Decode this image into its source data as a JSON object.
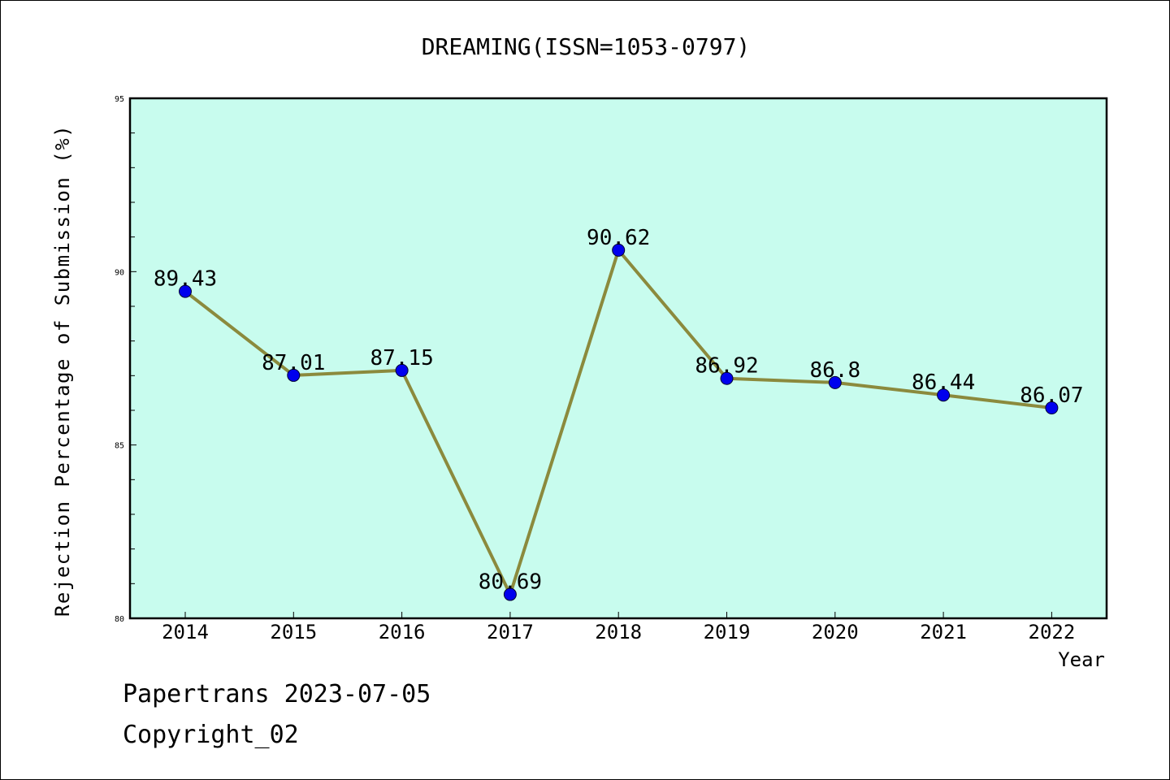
{
  "chart_data": {
    "type": "line",
    "title": "DREAMING(ISSN=1053-0797)",
    "xlabel": "Year",
    "ylabel": "Rejection Percentage of Submission (%)",
    "categories": [
      "2014",
      "2015",
      "2016",
      "2017",
      "2018",
      "2019",
      "2020",
      "2021",
      "2022"
    ],
    "values": [
      89.43,
      87.01,
      87.15,
      80.69,
      90.62,
      86.92,
      86.8,
      86.44,
      86.07
    ],
    "data_labels": [
      "89.43",
      "87.01",
      "87.15",
      "80.69",
      "90.62",
      "86.92",
      "86.8",
      "86.44",
      "86.07"
    ],
    "ylim": [
      80,
      95
    ],
    "yticks": [
      "80",
      "85",
      "90",
      "95"
    ],
    "grid": false,
    "legend": "none",
    "colors": {
      "plot_background": "#c8fcee",
      "line": "#8b8a3d",
      "marker": "#0000ee",
      "axes": "#000000"
    }
  },
  "footer": {
    "line1": "Papertrans 2023-07-05",
    "line2": "Copyright_02"
  }
}
